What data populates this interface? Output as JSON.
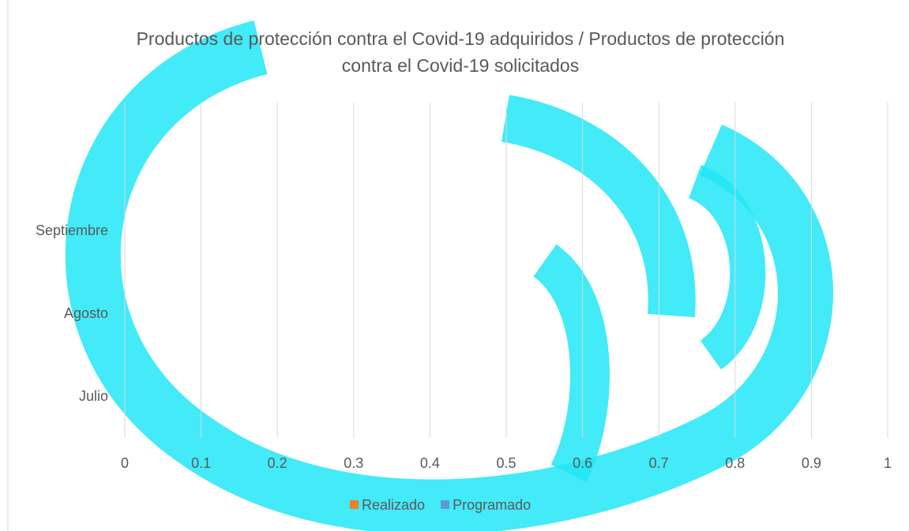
{
  "chart_data": {
    "type": "barh",
    "title": "Productos de protección contra el Covid-19 adquiridos / Productos de protección contra el Covid-19 solicitados",
    "categories": [
      "Julio",
      "Agosto",
      "Septiembre"
    ],
    "series": [
      {
        "name": "Realizado",
        "color": "#ed7d31",
        "values": [
          0,
          0,
          0
        ]
      },
      {
        "name": "Programado",
        "color": "#5b9bd5",
        "values": [
          0,
          0,
          0
        ]
      }
    ],
    "xlim": [
      0,
      1
    ],
    "xticks": [
      0,
      0.1,
      0.2,
      0.3,
      0.4,
      0.5,
      0.6,
      0.7,
      0.8,
      0.9,
      1
    ],
    "grid": true,
    "legend": "bottom"
  }
}
